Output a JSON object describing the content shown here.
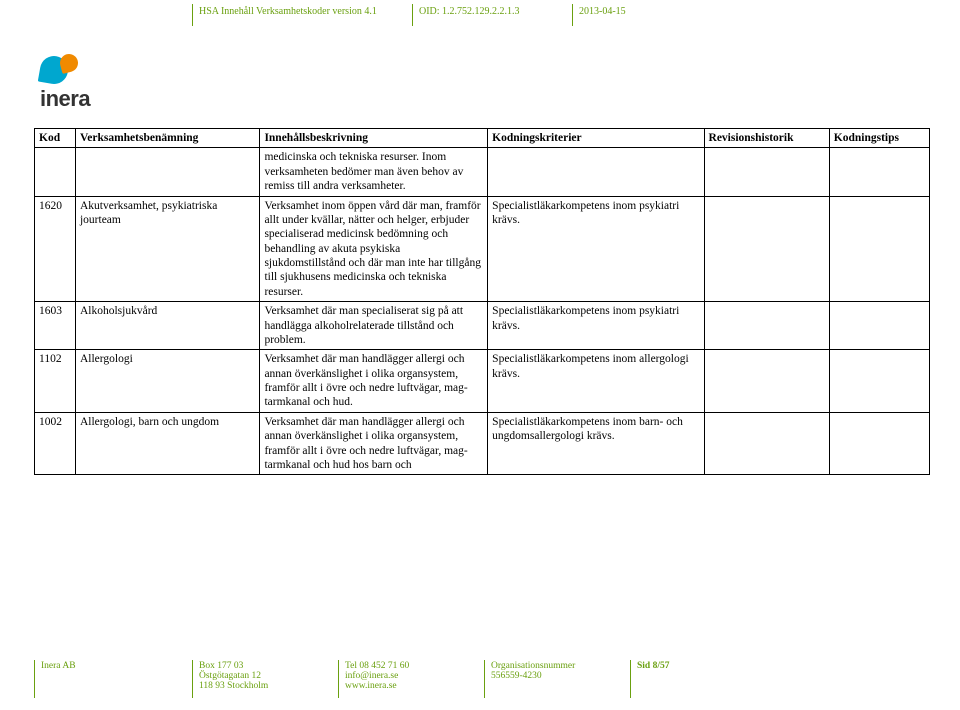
{
  "header": {
    "seg1": "HSA Innehåll Verksamhetskoder version 4.1",
    "seg2": "OID: 1.2.752.129.2.2.1.3",
    "seg3": "2013-04-15"
  },
  "logo": {
    "text": "inera"
  },
  "table": {
    "headers": {
      "kod": "Kod",
      "ben": "Verksamhetsbenämning",
      "inn": "Innehållsbeskrivning",
      "krit": "Kodningskriterier",
      "rev": "Revisionshistorik",
      "tips": "Kodningstips"
    },
    "rows": [
      {
        "kod": "",
        "ben": "",
        "inn": "medicinska och tekniska resurser. Inom verksamheten bedömer man även behov av remiss till andra verksamheter.",
        "krit": "",
        "rev": "",
        "tips": ""
      },
      {
        "kod": "1620",
        "ben": "Akutverksamhet, psykiatriska jourteam",
        "inn": "Verksamhet inom öppen vård där man, framför allt under kvällar, nätter och helger, erbjuder specialiserad medicinsk bedömning och behandling av akuta psykiska sjukdomstillstånd och där man inte har tillgång till sjukhusens medicinska och tekniska resurser.",
        "krit": "Specialistläkarkompetens inom psykiatri krävs.",
        "rev": "",
        "tips": ""
      },
      {
        "kod": "1603",
        "ben": "Alkoholsjukvård",
        "inn": "Verksamhet där man specialiserat sig på att handlägga alkoholrelaterade tillstånd och problem.",
        "krit": "Specialistläkarkompetens inom psykiatri krävs.",
        "rev": "",
        "tips": ""
      },
      {
        "kod": "1102",
        "ben": "Allergologi",
        "inn": "Verksamhet där man handlägger allergi och annan överkänslighet i olika organsystem, framför allt i övre och nedre luftvägar, mag-tarmkanal och hud.",
        "krit": "Specialistläkarkompetens inom allergologi krävs.",
        "rev": "",
        "tips": ""
      },
      {
        "kod": "1002",
        "ben": "Allergologi, barn och ungdom",
        "inn": "Verksamhet där man handlägger allergi och annan överkänslighet i olika organsystem, framför allt i övre och nedre luftvägar, mag-tarmkanal och hud hos barn och",
        "krit": "Specialistläkarkompetens inom barn- och ungdomsallergologi krävs.",
        "rev": "",
        "tips": ""
      }
    ]
  },
  "footer": {
    "f1_l1": "Inera AB",
    "f2_l1": "Box 177 03",
    "f2_l2": "Östgötagatan 12",
    "f2_l3": "118 93 Stockholm",
    "f3_l1": "Tel 08 452 71 60",
    "f3_l2": "info@inera.se",
    "f3_l3": "www.inera.se",
    "f4_l1": "Organisationsnummer",
    "f4_l2": "556559-4230",
    "f5_l1": "Sid 8/57"
  },
  "colors": {
    "accent": "#6aa00f",
    "logo_blue": "#00a7cf",
    "logo_orange": "#f08a00"
  }
}
